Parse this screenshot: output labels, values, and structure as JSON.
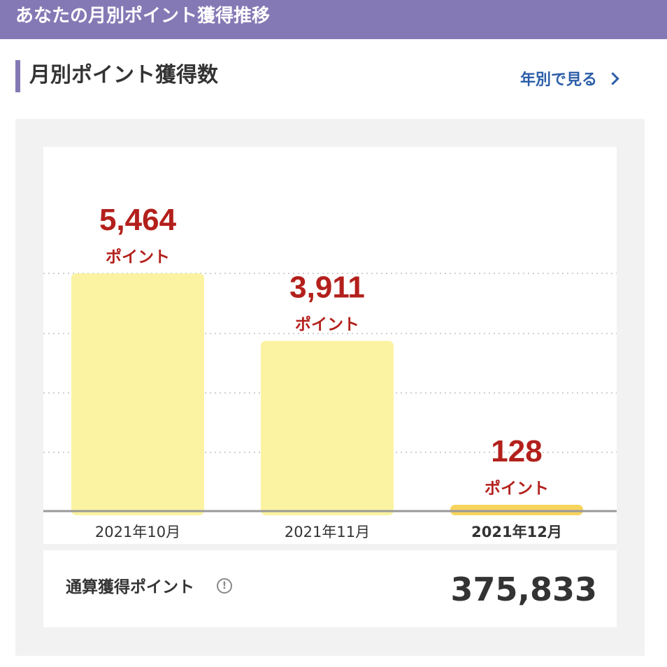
{
  "banner": {
    "title": "あなたの月別ポイント獲得推移"
  },
  "section": {
    "title": "月別ポイント獲得数",
    "yearly_link": "年別で見る"
  },
  "colors": {
    "accent": "#8579b5",
    "bar": "#fbf3a1",
    "bar_current": "#f7d45c",
    "value_text": "#b3201c",
    "link": "#2c5ea8"
  },
  "chart_data": {
    "type": "bar",
    "title": "月別ポイント獲得数",
    "categories": [
      "2021年10月",
      "2021年11月",
      "2021年12月"
    ],
    "values": [
      5464,
      3911,
      128
    ],
    "value_labels": [
      "5,464",
      "3,911",
      "128"
    ],
    "unit": "ポイント",
    "highlight_index": 2,
    "ylim": [
      0,
      6200
    ],
    "grid": true
  },
  "total": {
    "label": "通算獲得ポイント",
    "info_icon": "info-icon",
    "value": "375,833"
  }
}
